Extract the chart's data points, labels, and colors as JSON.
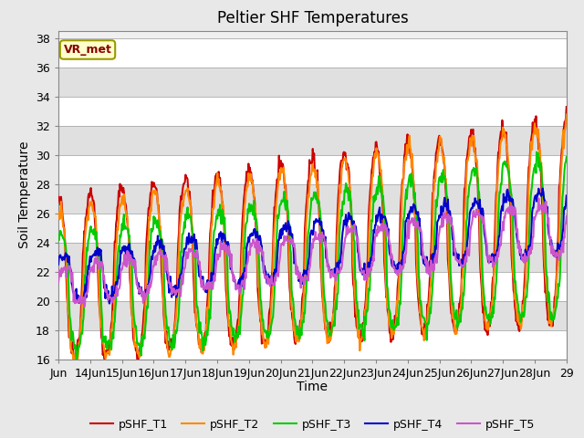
{
  "title": "Peltier SHF Temperatures",
  "ylabel": "Soil Temperature",
  "xlabel": "Time",
  "annotation": "VR_met",
  "ylim": [
    16,
    38.5
  ],
  "yticks": [
    16,
    18,
    20,
    22,
    24,
    26,
    28,
    30,
    32,
    34,
    36,
    38
  ],
  "xtick_labels": [
    "Jun",
    "14Jun",
    "15Jun",
    "16Jun",
    "17Jun",
    "18Jun",
    "19Jun",
    "20Jun",
    "21Jun",
    "22Jun",
    "23Jun",
    "24Jun",
    "25Jun",
    "26Jun",
    "27Jun",
    "28Jun",
    "29"
  ],
  "series_colors": [
    "#cc0000",
    "#ff8800",
    "#00cc00",
    "#0000cc",
    "#cc55cc"
  ],
  "series_names": [
    "pSHF_T1",
    "pSHF_T2",
    "pSHF_T3",
    "pSHF_T4",
    "pSHF_T5"
  ],
  "bg_color": "#e8e8e8",
  "plot_bg_color": "#f0f0f0",
  "title_fontsize": 12,
  "axis_fontsize": 10,
  "tick_fontsize": 9,
  "linewidth": 1.5
}
